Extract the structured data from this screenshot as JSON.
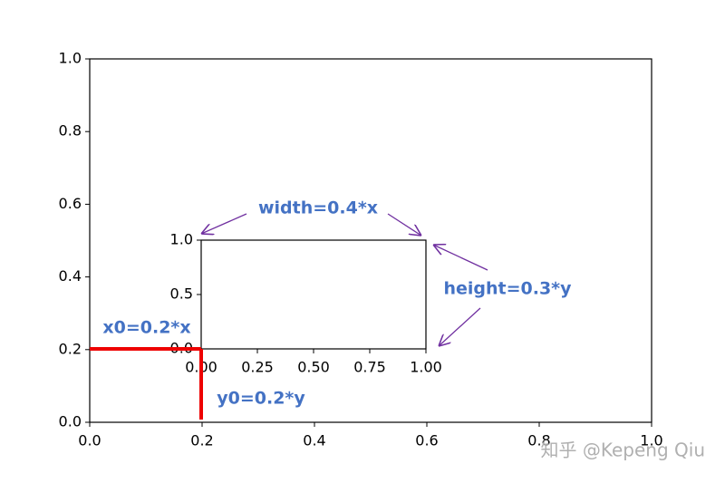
{
  "chart_data": [
    {
      "type": "axes",
      "xlim": [
        0,
        1
      ],
      "ylim": [
        0,
        1
      ],
      "xticks": [
        {
          "value": 0,
          "label": "0.0"
        },
        0.2,
        0.4,
        0.6,
        0.8,
        {
          "value": 1,
          "label": "1.0"
        }
      ],
      "yticks": [
        {
          "value": 0,
          "label": "0.0"
        },
        0.2,
        0.4,
        0.6,
        0.8,
        {
          "value": 1,
          "label": "1.0"
        }
      ]
    },
    {
      "type": "axes",
      "xlim": [
        0,
        1
      ],
      "ylim": [
        0,
        1
      ],
      "xticks": [
        {
          "value": 0,
          "label": "0.00"
        },
        0.25,
        {
          "value": 0.5,
          "label": "0.50"
        },
        0.75,
        {
          "value": 1,
          "label": "1.00"
        }
      ],
      "yticks": [
        {
          "value": 0,
          "label": "0.0"
        },
        0.5,
        {
          "value": 1,
          "label": "1.0"
        }
      ]
    }
  ],
  "annotations": [
    "width=0.4*x",
    "height=0.3*y",
    "x0=0.2*x",
    "y0=0.2*y"
  ],
  "watermark": "知乎 @Kepeng Qiu"
}
